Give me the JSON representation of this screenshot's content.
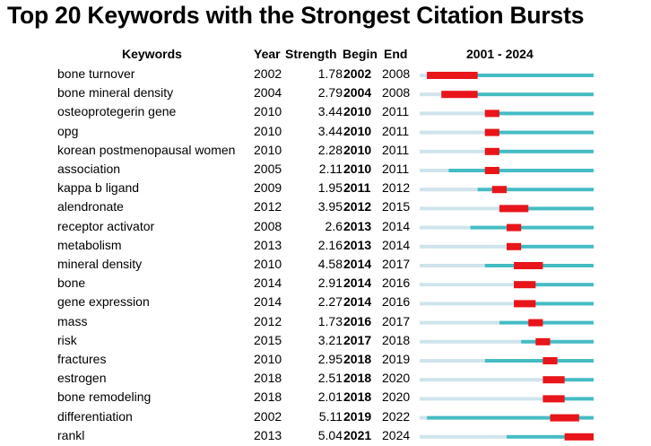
{
  "chart_data": {
    "type": "burst-timeline",
    "title": "Top 20 Keywords with the Strongest Citation Bursts",
    "headers": [
      "Keywords",
      "Year",
      "Strength",
      "Begin",
      "End"
    ],
    "range_label": "2001 - 2024",
    "timeline": [
      2001,
      2024
    ],
    "colors": {
      "before": "#cfe4ec",
      "after": "#45bcc4",
      "burst": "#e8151b"
    },
    "rows": [
      {
        "keyword": "bone turnover",
        "year": "2002",
        "strength": "1.78",
        "begin": "2002",
        "end": "2008"
      },
      {
        "keyword": "bone mineral density",
        "year": "2004",
        "strength": "2.79",
        "begin": "2004",
        "end": "2008"
      },
      {
        "keyword": "osteoprotegerin gene",
        "year": "2010",
        "strength": "3.44",
        "begin": "2010",
        "end": "2011"
      },
      {
        "keyword": "opg",
        "year": "2010",
        "strength": "3.44",
        "begin": "2010",
        "end": "2011"
      },
      {
        "keyword": "korean postmenopausal women",
        "year": "2010",
        "strength": "2.28",
        "begin": "2010",
        "end": "2011"
      },
      {
        "keyword": "association",
        "year": "2005",
        "strength": "2.11",
        "begin": "2010",
        "end": "2011"
      },
      {
        "keyword": "kappa b ligand",
        "year": "2009",
        "strength": "1.95",
        "begin": "2011",
        "end": "2012"
      },
      {
        "keyword": "alendronate",
        "year": "2012",
        "strength": "3.95",
        "begin": "2012",
        "end": "2015"
      },
      {
        "keyword": "receptor activator",
        "year": "2008",
        "strength": "2.6",
        "begin": "2013",
        "end": "2014"
      },
      {
        "keyword": "metabolism",
        "year": "2013",
        "strength": "2.16",
        "begin": "2013",
        "end": "2014"
      },
      {
        "keyword": "mineral density",
        "year": "2010",
        "strength": "4.58",
        "begin": "2014",
        "end": "2017"
      },
      {
        "keyword": "bone",
        "year": "2014",
        "strength": "2.91",
        "begin": "2014",
        "end": "2016"
      },
      {
        "keyword": "gene expression",
        "year": "2014",
        "strength": "2.27",
        "begin": "2014",
        "end": "2016"
      },
      {
        "keyword": "mass",
        "year": "2012",
        "strength": "1.73",
        "begin": "2016",
        "end": "2017"
      },
      {
        "keyword": "risk",
        "year": "2015",
        "strength": "3.21",
        "begin": "2017",
        "end": "2018"
      },
      {
        "keyword": "fractures",
        "year": "2010",
        "strength": "2.95",
        "begin": "2018",
        "end": "2019"
      },
      {
        "keyword": "estrogen",
        "year": "2018",
        "strength": "2.51",
        "begin": "2018",
        "end": "2020"
      },
      {
        "keyword": "bone remodeling",
        "year": "2018",
        "strength": "2.01",
        "begin": "2018",
        "end": "2020"
      },
      {
        "keyword": "differentiation",
        "year": "2002",
        "strength": "5.11",
        "begin": "2019",
        "end": "2022"
      },
      {
        "keyword": "rankl",
        "year": "2013",
        "strength": "5.04",
        "begin": "2021",
        "end": "2024"
      }
    ]
  }
}
